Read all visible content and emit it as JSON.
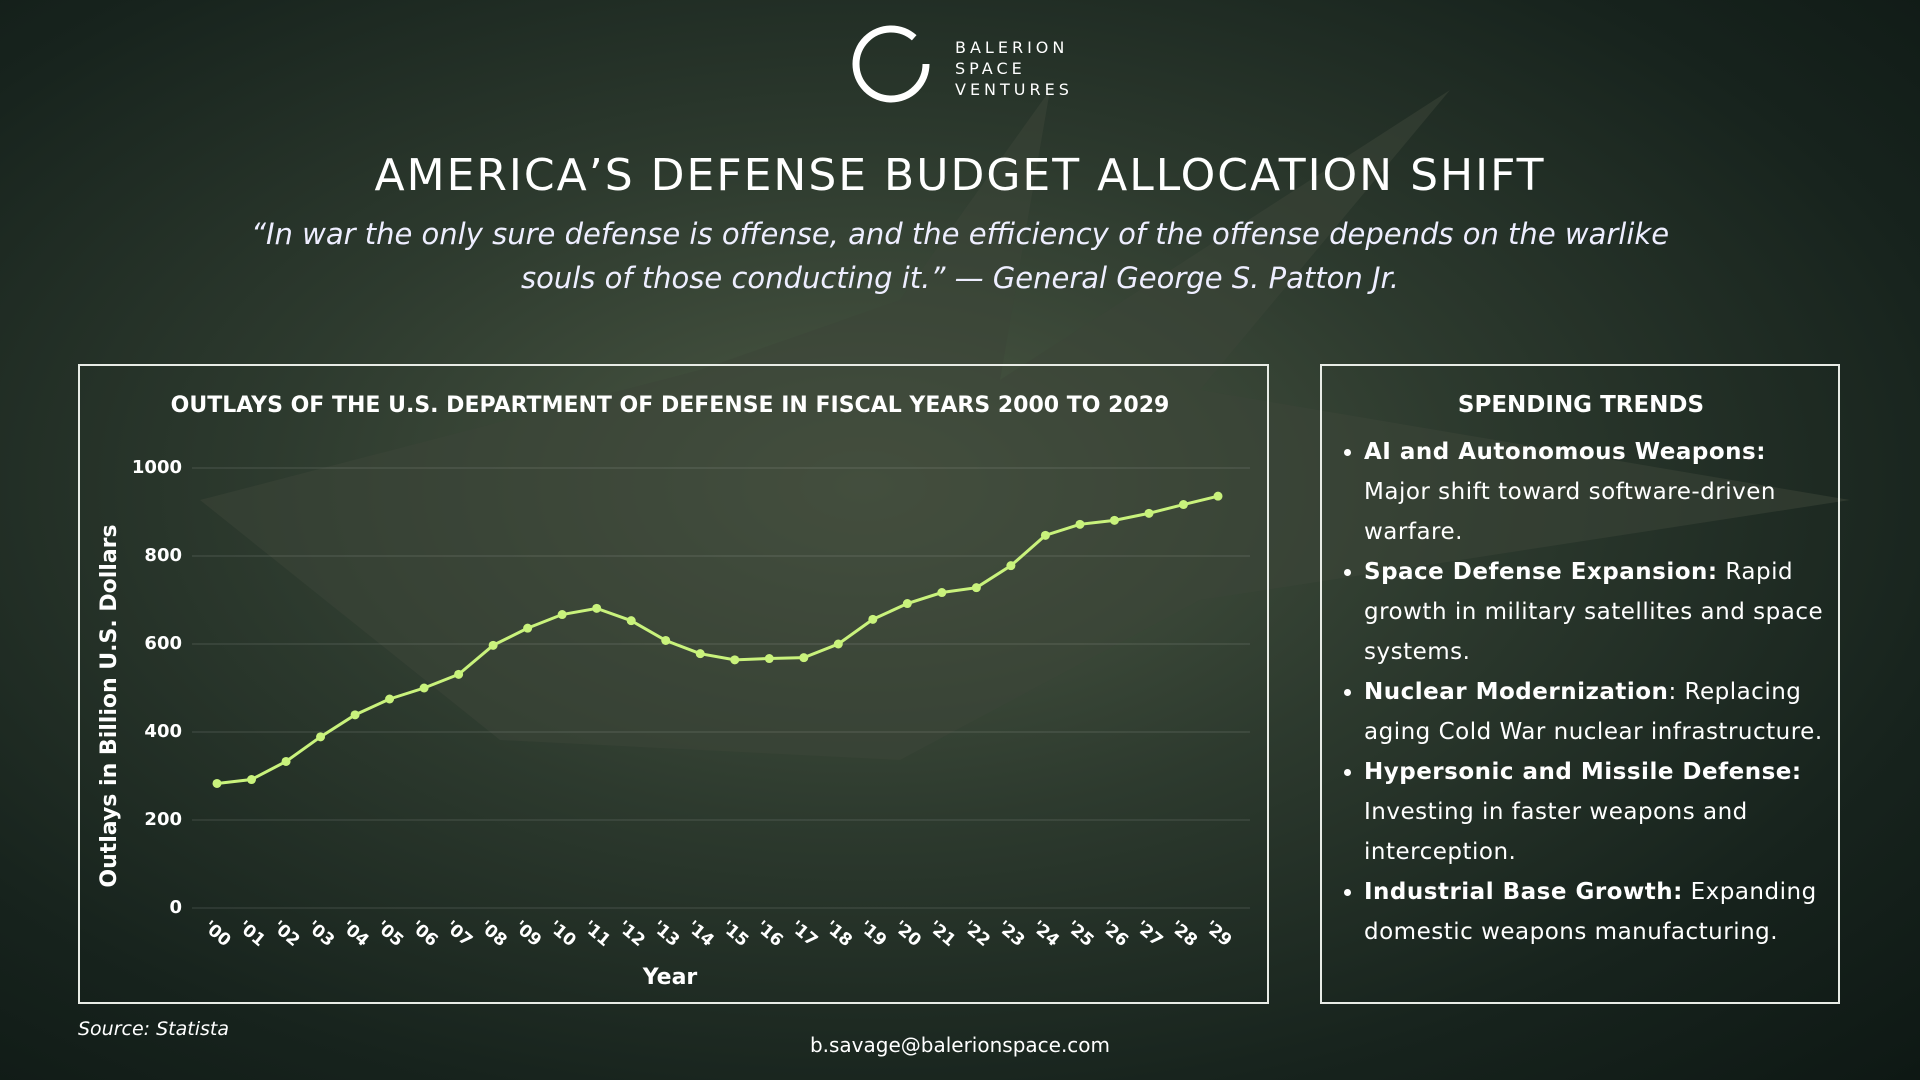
{
  "logo": {
    "lines": [
      "BALERION",
      "SPACE",
      "VENTURES"
    ]
  },
  "title": "AMERICA’S DEFENSE BUDGET ALLOCATION SHIFT",
  "quote": "“In war the only sure defense is offense, and the efficiency of the offense depends on the warlike souls of those conducting it.” — General George S. Patton Jr.",
  "chart_data": {
    "type": "line",
    "title": "OUTLAYS OF THE U.S. DEPARTMENT OF DEFENSE IN FISCAL YEARS 2000 TO 2029",
    "x_label": "Year",
    "y_label": "Outlays in Billion U.S. Dollars",
    "categories": [
      "'00",
      "'01",
      "'02",
      "'03",
      "'04",
      "'05",
      "'06",
      "'07",
      "'08",
      "'09",
      "'10",
      "'11",
      "'12",
      "'13",
      "'14",
      "'15",
      "'16",
      "'17",
      "'18",
      "'19",
      "'20",
      "'21",
      "'22",
      "'23",
      "'24",
      "'25",
      "'26",
      "'27",
      "'28",
      "'29"
    ],
    "values": [
      283,
      292,
      333,
      389,
      439,
      475,
      500,
      531,
      597,
      636,
      667,
      681,
      653,
      608,
      578,
      564,
      567,
      569,
      600,
      656,
      692,
      717,
      728,
      778,
      847,
      872,
      881,
      897,
      917,
      936
    ],
    "color": "#c9f27c",
    "ylim": [
      0,
      1000
    ],
    "yticks": [
      0,
      200,
      400,
      600,
      800,
      1000
    ],
    "grid": true
  },
  "trends": {
    "heading": "SPENDING TRENDS",
    "items": [
      {
        "bold": "AI and Autonomous Weapons:",
        "text": "Major shift toward software-driven warfare."
      },
      {
        "bold": "Space Defense Expansion:",
        "text": "Rapid growth in military satellites and space systems."
      },
      {
        "bold": "Nuclear Modernization",
        "text": ": Replacing aging Cold War nuclear infrastructure."
      },
      {
        "bold": "Hypersonic and Missile Defense:",
        "text": "Investing in faster weapons and interception."
      },
      {
        "bold": "Industrial Base Growth:",
        "text": "Expanding domestic weapons manufacturing."
      }
    ]
  },
  "source": "Source: Statista",
  "email": "b.savage@balerionspace.com"
}
